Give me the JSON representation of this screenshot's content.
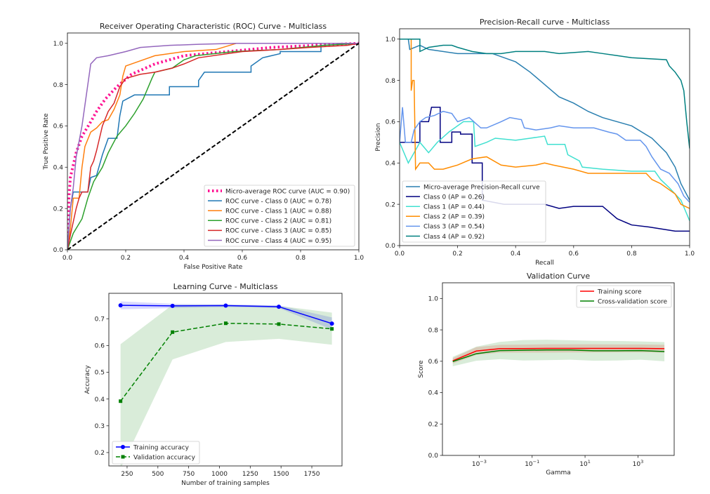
{
  "chart_data": [
    {
      "type": "line",
      "title": "Receiver Operating Characteristic (ROC) Curve - Multiclass",
      "xlabel": "False Positive Rate",
      "ylabel": "True Positive Rate",
      "xlim": [
        0,
        1
      ],
      "ylim": [
        0,
        1.05
      ],
      "xticks": [
        0,
        0.2,
        0.4,
        0.6,
        0.8,
        1.0
      ],
      "xtick_labels": [
        "0.0",
        "0.2",
        "0.4",
        "0.6",
        "0.8",
        "1.0"
      ],
      "yticks": [
        0,
        0.2,
        0.4,
        0.6,
        0.8,
        1.0
      ],
      "ytick_labels": [
        "0.0",
        "0.2",
        "0.4",
        "0.6",
        "0.8",
        "1.0"
      ],
      "grid": false,
      "legend": "lower-right",
      "series": [
        {
          "name": "Micro-average ROC curve (AUC = 0.90)",
          "color": "#ff1493",
          "style": "dotted",
          "x": [
            0,
            0.005,
            0.01,
            0.03,
            0.05,
            0.08,
            0.1,
            0.13,
            0.17,
            0.22,
            0.3,
            0.4,
            0.55,
            0.7,
            0.85,
            1
          ],
          "y": [
            0,
            0.25,
            0.35,
            0.47,
            0.55,
            0.62,
            0.67,
            0.73,
            0.79,
            0.85,
            0.9,
            0.94,
            0.96,
            0.98,
            0.99,
            1
          ]
        },
        {
          "name": "ROC curve - Class 0 (AUC = 0.78)",
          "color": "#1f77b4",
          "style": "solid",
          "x": [
            0,
            0.01,
            0.02,
            0.07,
            0.08,
            0.1,
            0.12,
            0.14,
            0.17,
            0.18,
            0.19,
            0.23,
            0.35,
            0.35,
            0.45,
            0.45,
            0.47,
            0.63,
            0.63,
            0.67,
            0.73,
            0.73,
            0.87,
            0.87,
            1
          ],
          "y": [
            0,
            0.2,
            0.28,
            0.28,
            0.35,
            0.36,
            0.46,
            0.54,
            0.54,
            0.65,
            0.72,
            0.75,
            0.75,
            0.79,
            0.79,
            0.82,
            0.86,
            0.86,
            0.89,
            0.93,
            0.95,
            0.96,
            0.96,
            0.99,
            1
          ]
        },
        {
          "name": "ROC curve - Class 1 (AUC = 0.88)",
          "color": "#ff7f0e",
          "style": "solid",
          "x": [
            0,
            0.01,
            0.02,
            0.04,
            0.05,
            0.06,
            0.08,
            0.1,
            0.12,
            0.14,
            0.16,
            0.18,
            0.19,
            0.2,
            0.24,
            0.3,
            0.4,
            0.51,
            0.58,
            1
          ],
          "y": [
            0,
            0.1,
            0.25,
            0.25,
            0.4,
            0.5,
            0.57,
            0.59,
            0.62,
            0.63,
            0.68,
            0.75,
            0.84,
            0.89,
            0.91,
            0.94,
            0.96,
            0.97,
            1.0,
            1
          ]
        },
        {
          "name": "ROC curve - Class 2 (AUC = 0.81)",
          "color": "#2ca02c",
          "style": "solid",
          "x": [
            0,
            0.02,
            0.05,
            0.07,
            0.09,
            0.12,
            0.14,
            0.17,
            0.2,
            0.23,
            0.26,
            0.29,
            0.3,
            0.36,
            0.4,
            0.44,
            0.57,
            0.73,
            0.88,
            1
          ],
          "y": [
            0,
            0.08,
            0.15,
            0.25,
            0.33,
            0.4,
            0.47,
            0.55,
            0.6,
            0.66,
            0.73,
            0.83,
            0.86,
            0.88,
            0.92,
            0.94,
            0.96,
            0.97,
            0.99,
            1
          ]
        },
        {
          "name": "ROC curve - Class 3 (AUC = 0.85)",
          "color": "#d62728",
          "style": "solid",
          "x": [
            0,
            0.01,
            0.03,
            0.04,
            0.05,
            0.07,
            0.08,
            0.09,
            0.1,
            0.12,
            0.14,
            0.16,
            0.18,
            0.2,
            0.25,
            0.3,
            0.36,
            0.4,
            0.45,
            0.6,
            0.73,
            0.83,
            0.96,
            1
          ],
          "y": [
            0,
            0.07,
            0.2,
            0.25,
            0.28,
            0.28,
            0.4,
            0.43,
            0.48,
            0.6,
            0.67,
            0.71,
            0.79,
            0.83,
            0.85,
            0.86,
            0.88,
            0.9,
            0.93,
            0.96,
            0.97,
            0.98,
            0.99,
            1
          ]
        },
        {
          "name": "ROC curve - Class 4 (AUC = 0.95)",
          "color": "#9467bd",
          "style": "solid",
          "x": [
            0,
            0.01,
            0.02,
            0.03,
            0.05,
            0.06,
            0.07,
            0.08,
            0.1,
            0.14,
            0.2,
            0.25,
            0.35,
            0.45,
            0.58,
            1
          ],
          "y": [
            0,
            0.2,
            0.3,
            0.45,
            0.6,
            0.7,
            0.8,
            0.9,
            0.93,
            0.94,
            0.96,
            0.98,
            0.99,
            0.995,
            1.0,
            1
          ]
        },
        {
          "name": "",
          "color": "#000000",
          "style": "dashed",
          "x": [
            0,
            1
          ],
          "y": [
            0,
            1
          ]
        }
      ]
    },
    {
      "type": "line",
      "title": "Precision-Recall curve - Multiclass",
      "xlabel": "Recall",
      "ylabel": "Precision",
      "xlim": [
        0,
        1
      ],
      "ylim": [
        0,
        1.05
      ],
      "xticks": [
        0,
        0.2,
        0.4,
        0.6,
        0.8,
        1.0
      ],
      "xtick_labels": [
        "0.0",
        "0.2",
        "0.4",
        "0.6",
        "0.8",
        "1.0"
      ],
      "yticks": [
        0,
        0.2,
        0.4,
        0.6,
        0.8,
        1.0
      ],
      "ytick_labels": [
        "0.0",
        "0.2",
        "0.4",
        "0.6",
        "0.8",
        "1.0"
      ],
      "grid": false,
      "legend": "lower-left",
      "series": [
        {
          "name": "Micro-average Precision-Recall curve",
          "color": "#2a7fb0",
          "style": "solid",
          "x": [
            0,
            0.03,
            0.035,
            0.07,
            0.1,
            0.2,
            0.32,
            0.4,
            0.45,
            0.5,
            0.55,
            0.6,
            0.65,
            0.7,
            0.8,
            0.87,
            0.92,
            0.95,
            0.97,
            1
          ],
          "y": [
            1,
            1,
            0.95,
            0.97,
            0.95,
            0.93,
            0.93,
            0.89,
            0.84,
            0.78,
            0.72,
            0.69,
            0.65,
            0.62,
            0.58,
            0.52,
            0.45,
            0.38,
            0.3,
            0.22
          ]
        },
        {
          "name": "Class 0 (AP = 0.26)",
          "color": "#000080",
          "style": "solid",
          "x": [
            0,
            0.07,
            0.07,
            0.1,
            0.11,
            0.14,
            0.14,
            0.18,
            0.18,
            0.21,
            0.21,
            0.25,
            0.25,
            0.285,
            0.285,
            0.36,
            0.5,
            0.55,
            0.6,
            0.7,
            0.75,
            0.8,
            0.86,
            0.95,
            1
          ],
          "y": [
            0.5,
            0.5,
            0.6,
            0.6,
            0.67,
            0.67,
            0.5,
            0.5,
            0.55,
            0.55,
            0.54,
            0.54,
            0.4,
            0.4,
            0.22,
            0.2,
            0.2,
            0.18,
            0.19,
            0.19,
            0.13,
            0.1,
            0.09,
            0.07,
            0.07
          ]
        },
        {
          "name": "Class 1 (AP = 0.44)",
          "color": "#40e0d0",
          "style": "solid",
          "x": [
            0,
            0.03,
            0.05,
            0.07,
            0.1,
            0.13,
            0.17,
            0.22,
            0.255,
            0.26,
            0.3,
            0.33,
            0.4,
            0.45,
            0.5,
            0.51,
            0.57,
            0.58,
            0.62,
            0.63,
            0.7,
            0.8,
            0.88,
            0.9,
            0.93,
            0.97,
            1
          ],
          "y": [
            0.5,
            0.4,
            0.45,
            0.5,
            0.45,
            0.5,
            0.55,
            0.6,
            0.6,
            0.48,
            0.5,
            0.52,
            0.51,
            0.52,
            0.53,
            0.49,
            0.49,
            0.44,
            0.41,
            0.38,
            0.37,
            0.36,
            0.36,
            0.32,
            0.28,
            0.22,
            0.12
          ]
        },
        {
          "name": "Class 2 (AP = 0.39)",
          "color": "#ff8c00",
          "style": "solid",
          "x": [
            0,
            0.04,
            0.04,
            0.045,
            0.05,
            0.055,
            0.07,
            0.1,
            0.12,
            0.15,
            0.2,
            0.25,
            0.3,
            0.35,
            0.4,
            0.47,
            0.5,
            0.53,
            0.6,
            0.65,
            0.75,
            0.85,
            0.87,
            0.9,
            0.95,
            0.97,
            1
          ],
          "y": [
            1,
            1,
            0.75,
            0.8,
            0.8,
            0.37,
            0.4,
            0.4,
            0.37,
            0.37,
            0.39,
            0.42,
            0.43,
            0.39,
            0.38,
            0.39,
            0.4,
            0.39,
            0.37,
            0.35,
            0.35,
            0.35,
            0.32,
            0.3,
            0.25,
            0.2,
            0.18
          ]
        },
        {
          "name": "Class 3 (AP = 0.54)",
          "color": "#6495ed",
          "style": "solid",
          "x": [
            0,
            0.01,
            0.02,
            0.04,
            0.05,
            0.07,
            0.09,
            0.12,
            0.15,
            0.18,
            0.2,
            0.24,
            0.28,
            0.3,
            0.35,
            0.38,
            0.42,
            0.43,
            0.47,
            0.52,
            0.55,
            0.6,
            0.67,
            0.72,
            0.75,
            0.78,
            0.83,
            0.85,
            0.87,
            0.9,
            0.93,
            0.96,
            0.98,
            1
          ],
          "y": [
            0.5,
            0.67,
            0.5,
            0.5,
            0.56,
            0.6,
            0.62,
            0.63,
            0.65,
            0.64,
            0.6,
            0.62,
            0.57,
            0.57,
            0.6,
            0.62,
            0.61,
            0.57,
            0.56,
            0.57,
            0.58,
            0.57,
            0.57,
            0.55,
            0.54,
            0.51,
            0.51,
            0.48,
            0.43,
            0.37,
            0.35,
            0.3,
            0.24,
            0.21
          ]
        },
        {
          "name": "Class 4 (AP = 0.92)",
          "color": "#008080",
          "style": "solid",
          "x": [
            0,
            0.07,
            0.07,
            0.1,
            0.15,
            0.18,
            0.2,
            0.25,
            0.3,
            0.35,
            0.4,
            0.5,
            0.55,
            0.65,
            0.7,
            0.75,
            0.8,
            0.92,
            0.93,
            0.95,
            0.97,
            0.98,
            0.99,
            1
          ],
          "y": [
            1,
            1,
            0.94,
            0.96,
            0.97,
            0.97,
            0.96,
            0.94,
            0.93,
            0.93,
            0.94,
            0.94,
            0.93,
            0.94,
            0.93,
            0.92,
            0.91,
            0.9,
            0.87,
            0.84,
            0.8,
            0.75,
            0.6,
            0.47
          ]
        }
      ]
    },
    {
      "type": "line",
      "title": "Learning Curve - Multiclass",
      "xlabel": "Number of training samples",
      "ylabel": "Accuracy",
      "xlim": [
        102,
        1995
      ],
      "ylim": [
        0.15,
        0.795
      ],
      "xticks": [
        250,
        500,
        750,
        1000,
        1250,
        1500,
        1750
      ],
      "xtick_labels": [
        "250",
        "500",
        "750",
        "1000",
        "1250",
        "1500",
        "1750"
      ],
      "yticks": [
        0.2,
        0.3,
        0.4,
        0.5,
        0.6,
        0.7
      ],
      "ytick_labels": [
        "0.2",
        "0.3",
        "0.4",
        "0.5",
        "0.6",
        "0.7"
      ],
      "grid": false,
      "legend": "lower-left",
      "x": [
        197,
        619,
        1051,
        1482,
        1913
      ],
      "series": [
        {
          "name": "Training accuracy",
          "color": "#0000ff",
          "style": "solid",
          "marker": "circle",
          "y": [
            0.75,
            0.748,
            0.749,
            0.745,
            0.682
          ],
          "band_low": [
            0.735,
            0.74,
            0.744,
            0.74,
            0.66
          ],
          "band_high": [
            0.765,
            0.756,
            0.754,
            0.75,
            0.705
          ]
        },
        {
          "name": "Validation accuracy",
          "color": "#008000",
          "style": "dashed",
          "marker": "square",
          "y": [
            0.392,
            0.65,
            0.683,
            0.68,
            0.662
          ],
          "band_low": [
            0.14,
            0.548,
            0.613,
            0.625,
            0.603
          ],
          "band_high": [
            0.605,
            0.752,
            0.752,
            0.748,
            0.723
          ]
        }
      ]
    },
    {
      "type": "line",
      "title": "Validation Curve",
      "xlabel": "Gamma",
      "ylabel": "Score",
      "xscale": "log",
      "xlim": [
        4.07e-05,
        23400
      ],
      "ylim": [
        0,
        1.1
      ],
      "xticks": [
        0.001,
        0.1,
        10,
        1000
      ],
      "xtick_labels": [
        [
          "10",
          "−3"
        ],
        [
          "10",
          "−1"
        ],
        [
          "10",
          "1"
        ],
        [
          "10",
          "3"
        ]
      ],
      "yticks": [
        0,
        0.2,
        0.4,
        0.6,
        0.8,
        1.0
      ],
      "ytick_labels": [
        "0.0",
        "0.2",
        "0.4",
        "0.6",
        "0.8",
        "1.0"
      ],
      "grid": false,
      "legend": "upper-right",
      "x": [
        0.0001,
        0.000774,
        0.00599,
        0.0464,
        0.359,
        2.78,
        21.5,
        167,
        1292,
        10000
      ],
      "series": [
        {
          "name": "Training score",
          "color": "#ff0000",
          "style": "solid",
          "y": [
            0.603,
            0.665,
            0.68,
            0.681,
            0.682,
            0.682,
            0.682,
            0.682,
            0.682,
            0.68
          ],
          "band_low": [
            0.585,
            0.64,
            0.655,
            0.655,
            0.655,
            0.656,
            0.656,
            0.657,
            0.657,
            0.655
          ],
          "band_high": [
            0.62,
            0.69,
            0.705,
            0.706,
            0.708,
            0.708,
            0.708,
            0.707,
            0.707,
            0.705
          ]
        },
        {
          "name": "Cross-validation score",
          "color": "#008000",
          "style": "solid",
          "y": [
            0.598,
            0.648,
            0.668,
            0.67,
            0.672,
            0.672,
            0.667,
            0.667,
            0.668,
            0.662
          ],
          "band_low": [
            0.568,
            0.603,
            0.613,
            0.605,
            0.607,
            0.61,
            0.603,
            0.605,
            0.61,
            0.6
          ],
          "band_high": [
            0.628,
            0.693,
            0.723,
            0.735,
            0.737,
            0.734,
            0.73,
            0.729,
            0.726,
            0.722
          ]
        }
      ]
    }
  ]
}
